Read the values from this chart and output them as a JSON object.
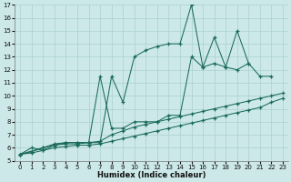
{
  "xlabel": "Humidex (Indice chaleur)",
  "bg_color": "#cce8e8",
  "line_color": "#1a6b5a",
  "grid_color": "#aad0d0",
  "xlim": [
    -0.5,
    23.5
  ],
  "ylim": [
    5,
    17
  ],
  "xticks": [
    0,
    1,
    2,
    3,
    4,
    5,
    6,
    7,
    8,
    9,
    10,
    11,
    12,
    13,
    14,
    15,
    16,
    17,
    18,
    19,
    20,
    21,
    22,
    23
  ],
  "yticks": [
    5,
    6,
    7,
    8,
    9,
    10,
    11,
    12,
    13,
    14,
    15,
    16,
    17
  ],
  "s1x": [
    0,
    1,
    2,
    3,
    4,
    5,
    6,
    7,
    8,
    9,
    10,
    11,
    12,
    13,
    14,
    15,
    16,
    17,
    18,
    19,
    20,
    21,
    22
  ],
  "s1y": [
    5.5,
    6.0,
    5.8,
    6.2,
    6.4,
    6.4,
    6.4,
    6.4,
    11.5,
    9.5,
    13.0,
    13.5,
    13.8,
    14.0,
    14.0,
    17.0,
    12.2,
    14.5,
    12.2,
    15.0,
    12.5,
    11.5,
    11.5
  ],
  "s2x": [
    0,
    2,
    3,
    4,
    5,
    6,
    7,
    8,
    9,
    10,
    11,
    12,
    13,
    14,
    15,
    16,
    17,
    18,
    19,
    20
  ],
  "s2y": [
    5.5,
    6.0,
    6.3,
    6.4,
    6.4,
    6.4,
    11.5,
    7.5,
    7.5,
    8.0,
    8.0,
    8.0,
    8.5,
    8.5,
    13.0,
    12.2,
    12.5,
    12.2,
    12.0,
    12.5
  ],
  "s3x": [
    0,
    1,
    2,
    3,
    4,
    5,
    6,
    7,
    8,
    9,
    10,
    11,
    12,
    13,
    14,
    15,
    16,
    17,
    18,
    19,
    20,
    21,
    22,
    23
  ],
  "s3y": [
    5.5,
    5.7,
    6.0,
    6.2,
    6.3,
    6.3,
    6.4,
    6.5,
    7.0,
    7.3,
    7.6,
    7.8,
    8.0,
    8.2,
    8.4,
    8.6,
    8.8,
    9.0,
    9.2,
    9.4,
    9.6,
    9.8,
    10.0,
    10.2
  ],
  "s4x": [
    0,
    1,
    2,
    3,
    4,
    5,
    6,
    7,
    8,
    9,
    10,
    11,
    12,
    13,
    14,
    15,
    16,
    17,
    18,
    19,
    20,
    21,
    22,
    23
  ],
  "s4y": [
    5.5,
    5.6,
    5.8,
    6.0,
    6.1,
    6.2,
    6.2,
    6.3,
    6.5,
    6.7,
    6.9,
    7.1,
    7.3,
    7.5,
    7.7,
    7.9,
    8.1,
    8.3,
    8.5,
    8.7,
    8.9,
    9.1,
    9.5,
    9.8
  ]
}
